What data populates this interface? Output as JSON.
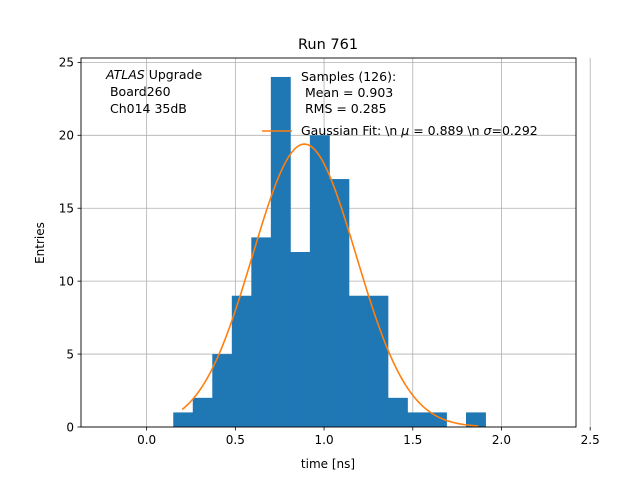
{
  "chart_data": {
    "type": "histogram",
    "title": "Run 761",
    "xlabel": "time [ns]",
    "ylabel": "Entries",
    "xlim": [
      -0.37,
      2.42
    ],
    "ylim": [
      0,
      25.3
    ],
    "xticks": [
      0.0,
      0.5,
      1.0,
      1.5,
      2.0,
      2.5
    ],
    "xtick_labels": [
      "0.0",
      "0.5",
      "1.0",
      "1.5",
      "2.0",
      "2.5"
    ],
    "yticks": [
      0,
      5,
      10,
      15,
      20,
      25
    ],
    "ytick_labels": [
      "0",
      "5",
      "10",
      "15",
      "20",
      "25"
    ],
    "grid": true,
    "bin_width": 0.11,
    "bin_edges": [
      0.15,
      0.26,
      0.37,
      0.48,
      0.59,
      0.7,
      0.81,
      0.92,
      1.03,
      1.14,
      1.25,
      1.36,
      1.47,
      1.58,
      1.69,
      1.8,
      1.91
    ],
    "counts": [
      1,
      2,
      5,
      9,
      13,
      24,
      12,
      20,
      17,
      9,
      9,
      2,
      1,
      1,
      0,
      1
    ],
    "histogram_color": "#1f77b4",
    "fit": {
      "label": "Gaussian Fit: \\n $\\mu$ = 0.889 \\n $\\sigma$=0.292",
      "mu": 0.889,
      "sigma": 0.292,
      "amplitude": 19.4,
      "x_range": [
        0.2,
        1.87
      ],
      "color": "#ff7f0e"
    },
    "annotation": {
      "line1_italic": "ATLAS",
      "line1_rest": " Upgrade",
      "line2": " Board260",
      "line3": " Ch014 35dB"
    },
    "legend": {
      "placement": "top-right",
      "samples_title": "Samples (126):",
      "mean_line": " Mean = 0.903",
      "rms_line": " RMS = 0.285",
      "fit_prefix": "Gaussian Fit: \\n ",
      "fit_mu_symbol": "μ",
      "fit_mid": " = 0.889 \\n ",
      "fit_sigma_symbol": "σ",
      "fit_suffix": "=0.292"
    }
  }
}
